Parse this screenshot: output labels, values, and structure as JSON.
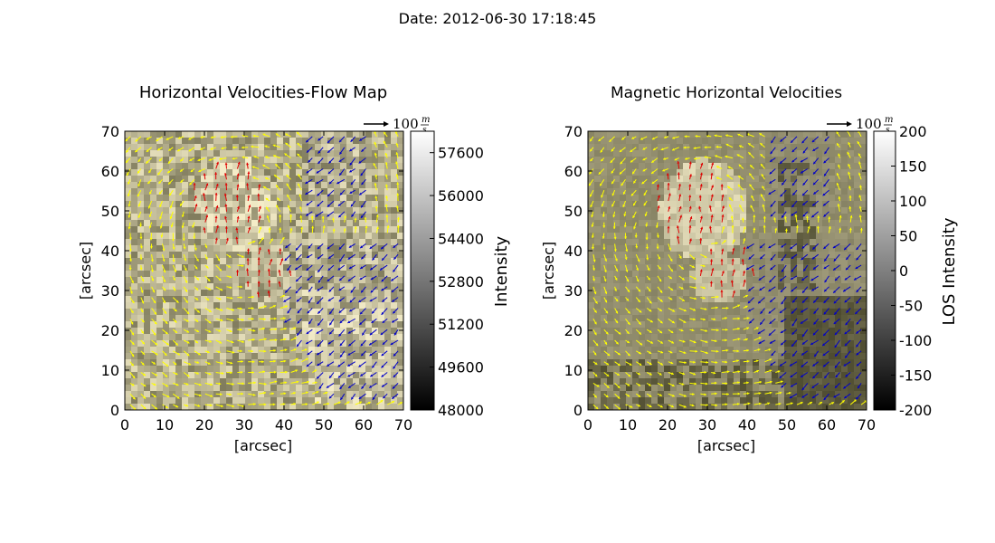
{
  "figure": {
    "suptitle": "Date: 2012-06-30 17:18:45"
  },
  "chart_data": [
    {
      "type": "heatmap",
      "subtype": "quiver-over-image",
      "title": "Horizontal Velocities-Flow Map",
      "xlabel": "[arcsec]",
      "ylabel": "[arcsec]",
      "xlim": [
        0,
        70
      ],
      "ylim": [
        0,
        70
      ],
      "xticks": [
        "0",
        "10",
        "20",
        "30",
        "40",
        "50",
        "60",
        "70"
      ],
      "yticks": [
        "0",
        "10",
        "20",
        "30",
        "40",
        "50",
        "60",
        "70"
      ],
      "background": "granulation",
      "colormap": "gray",
      "colorbar": {
        "label": "Intensity",
        "range": [
          48000,
          58400
        ],
        "ticks": [
          "48000",
          "49600",
          "51200",
          "52800",
          "54400",
          "56000",
          "57600"
        ]
      },
      "arrow_key": {
        "base": "100",
        "units": "m",
        "units_den": "s"
      },
      "vector_colors": {
        "default": "#ffff00",
        "positive_polarity": "#e00000",
        "negative_polarity": "#0000c8"
      }
    },
    {
      "type": "heatmap",
      "subtype": "quiver-over-image",
      "title": "Magnetic Horizontal Velocities",
      "xlabel": "[arcsec]",
      "ylabel": "",
      "xlim": [
        0,
        70
      ],
      "ylim": [
        0,
        70
      ],
      "xticks": [
        "0",
        "10",
        "20",
        "30",
        "40",
        "50",
        "60",
        "70"
      ],
      "yticks": [
        "0",
        "10",
        "20",
        "30",
        "40",
        "50",
        "60",
        "70"
      ],
      "background": "magnetogram",
      "colormap": "gray",
      "colorbar": {
        "label": "LOS Intensity",
        "range": [
          -200,
          200
        ],
        "ticks": [
          "200",
          "150",
          "100",
          "50",
          "0",
          "-50",
          "-100",
          "-150",
          "-200"
        ]
      },
      "arrow_key": {
        "base": "100",
        "units": "m",
        "units_den": "s"
      },
      "vector_colors": {
        "default": "#ffff00",
        "positive_polarity": "#e00000",
        "negative_polarity": "#0000c8"
      }
    }
  ]
}
